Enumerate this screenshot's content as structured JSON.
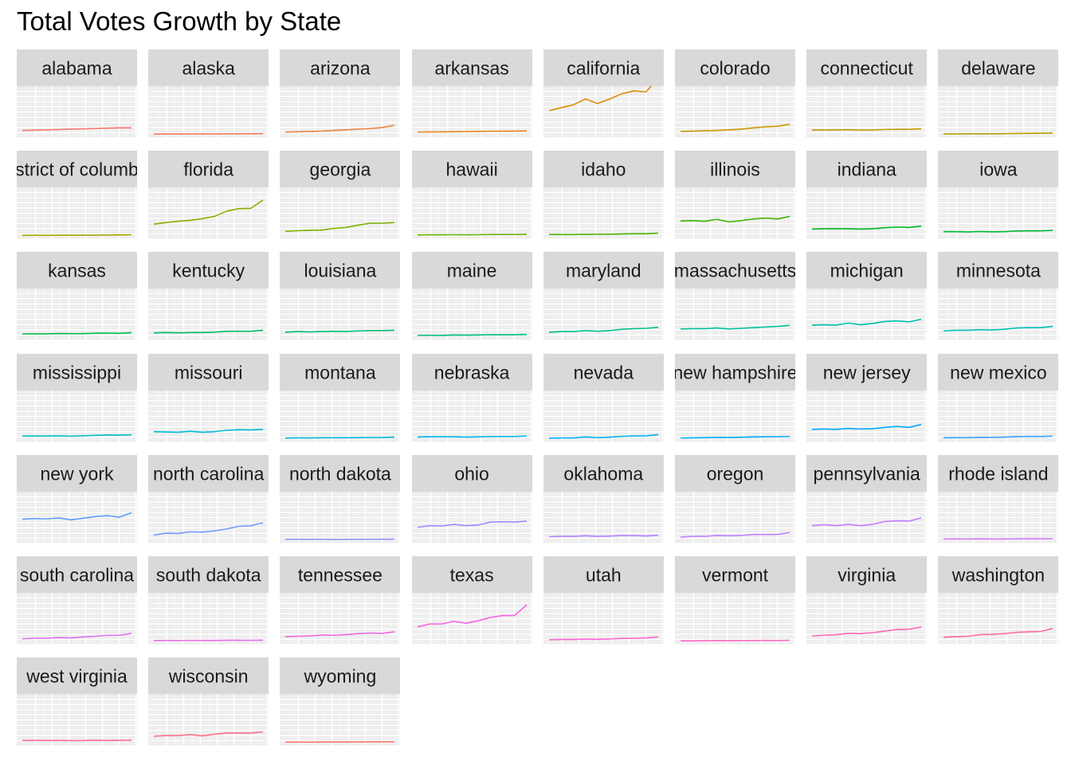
{
  "chart_data": {
    "type": "line",
    "title": "Total Votes Growth by State",
    "facet_columns": 8,
    "ylim": [
      0,
      14000000
    ],
    "grid": true,
    "legend": "none",
    "series": [
      {
        "name": "alabama",
        "color": "#F8766D",
        "values": [
          1300000,
          1400000,
          1500000,
          1600000,
          1700000,
          1800000,
          1900000,
          2000000,
          2100000,
          2100000
        ]
      },
      {
        "name": "alaska",
        "color": "#F37B59",
        "values": [
          190000,
          200000,
          210000,
          220000,
          230000,
          240000,
          250000,
          260000,
          300000,
          320000
        ]
      },
      {
        "name": "arizona",
        "color": "#ED8141",
        "values": [
          800000,
          900000,
          1000000,
          1100000,
          1300000,
          1500000,
          1700000,
          1900000,
          2200000,
          2900000
        ]
      },
      {
        "name": "arkansas",
        "color": "#E7861B",
        "values": [
          800000,
          850000,
          880000,
          900000,
          950000,
          1000000,
          1050000,
          1080000,
          1100000,
          1150000
        ]
      },
      {
        "name": "california",
        "color": "#DB8E00",
        "values": [
          7400000,
          8300000,
          9200000,
          11000000,
          9600000,
          11000000,
          12600000,
          13500000,
          13200000,
          17500000
        ]
      },
      {
        "name": "colorado",
        "color": "#CF9400",
        "values": [
          1000000,
          1100000,
          1200000,
          1300000,
          1500000,
          1700000,
          2100000,
          2400000,
          2600000,
          3200000
        ]
      },
      {
        "name": "connecticut",
        "color": "#C19A00",
        "values": [
          1400000,
          1450000,
          1450000,
          1550000,
          1400000,
          1450000,
          1600000,
          1650000,
          1650000,
          1800000
        ]
      },
      {
        "name": "delaware",
        "color": "#B2A000",
        "values": [
          230000,
          240000,
          250000,
          270000,
          270000,
          330000,
          380000,
          410000,
          440000,
          500000
        ]
      },
      {
        "name": "district of columbia",
        "color": "#A3A500",
        "values": [
          170000,
          190000,
          180000,
          190000,
          200000,
          200000,
          230000,
          270000,
          290000,
          340000
        ]
      },
      {
        "name": "florida",
        "color": "#93AA00",
        "values": [
          3600000,
          4100000,
          4500000,
          4800000,
          5300000,
          6000000,
          7600000,
          8400000,
          8500000,
          11000000
        ]
      },
      {
        "name": "georgia",
        "color": "#7FAE00",
        "values": [
          1400000,
          1600000,
          1700000,
          1800000,
          2300000,
          2600000,
          3300000,
          3900000,
          3900000,
          4100000
        ]
      },
      {
        "name": "hawaii",
        "color": "#69B100",
        "values": [
          300000,
          340000,
          360000,
          370000,
          360000,
          370000,
          430000,
          450000,
          430000,
          470000
        ]
      },
      {
        "name": "idaho",
        "color": "#4EB400",
        "values": [
          440000,
          420000,
          420000,
          480000,
          490000,
          500000,
          590000,
          650000,
          650000,
          850000
        ]
      },
      {
        "name": "illinois",
        "color": "#39B600",
        "values": [
          4600000,
          4700000,
          4500000,
          5100000,
          4300000,
          4700000,
          5200000,
          5500000,
          5200000,
          6000000
        ]
      },
      {
        "name": "indiana",
        "color": "#00B81D",
        "values": [
          2100000,
          2200000,
          2200000,
          2200000,
          2100000,
          2200000,
          2500000,
          2700000,
          2600000,
          3000000
        ]
      },
      {
        "name": "iowa",
        "color": "#00BA38",
        "values": [
          1300000,
          1300000,
          1200000,
          1350000,
          1250000,
          1300000,
          1500000,
          1550000,
          1550000,
          1700000
        ]
      },
      {
        "name": "kansas",
        "color": "#00BB4E",
        "values": [
          980000,
          1000000,
          990000,
          1100000,
          1070000,
          1070000,
          1180000,
          1230000,
          1160000,
          1370000
        ]
      },
      {
        "name": "kentucky",
        "color": "#00BC5D",
        "values": [
          1300000,
          1400000,
          1300000,
          1400000,
          1400000,
          1500000,
          1800000,
          1800000,
          1800000,
          2100000
        ]
      },
      {
        "name": "louisiana",
        "color": "#00BE70",
        "values": [
          1500000,
          1700000,
          1600000,
          1700000,
          1800000,
          1700000,
          1900000,
          2000000,
          2000000,
          2100000
        ]
      },
      {
        "name": "maine",
        "color": "#00BF80",
        "values": [
          520000,
          550000,
          500000,
          650000,
          600000,
          650000,
          740000,
          730000,
          710000,
          820000
        ]
      },
      {
        "name": "maryland",
        "color": "#00C08D",
        "values": [
          1500000,
          1700000,
          1700000,
          2000000,
          1800000,
          2000000,
          2400000,
          2600000,
          2700000,
          3000000
        ]
      },
      {
        "name": "massachusetts",
        "color": "#00C19A",
        "values": [
          2500000,
          2600000,
          2600000,
          2800000,
          2500000,
          2700000,
          2900000,
          3100000,
          3300000,
          3600000
        ]
      },
      {
        "name": "michigan",
        "color": "#00C0AB",
        "values": [
          3700000,
          3800000,
          3700000,
          4300000,
          3800000,
          4200000,
          4800000,
          5000000,
          4700000,
          5500000
        ]
      },
      {
        "name": "minnesota",
        "color": "#00C0B8",
        "values": [
          1900000,
          2100000,
          2100000,
          2300000,
          2200000,
          2400000,
          2800000,
          2900000,
          2900000,
          3300000
        ]
      },
      {
        "name": "mississippi",
        "color": "#00BEC4",
        "values": [
          940000,
          930000,
          930000,
          990000,
          890000,
          990000,
          1150000,
          1280000,
          1210000,
          1310000
        ]
      },
      {
        "name": "missouri",
        "color": "#00BCD1",
        "values": [
          2300000,
          2200000,
          2100000,
          2400000,
          2100000,
          2300000,
          2700000,
          2900000,
          2800000,
          3000000
        ]
      },
      {
        "name": "montana",
        "color": "#00B9DD",
        "values": [
          330000,
          380000,
          360000,
          410000,
          400000,
          410000,
          450000,
          490000,
          500000,
          600000
        ]
      },
      {
        "name": "nebraska",
        "color": "#00B6EB",
        "values": [
          640000,
          710000,
          710000,
          730000,
          600000,
          700000,
          770000,
          800000,
          800000,
          950000
        ]
      },
      {
        "name": "nevada",
        "color": "#00B2F3",
        "values": [
          290000,
          350000,
          350000,
          660000,
          460000,
          600000,
          830000,
          970000,
          1000000,
          1400000
        ]
      },
      {
        "name": "new hampshire",
        "color": "#00ADFA",
        "values": [
          340000,
          380000,
          450000,
          530000,
          500000,
          560000,
          670000,
          710000,
          740000,
          800000
        ]
      },
      {
        "name": "new jersey",
        "color": "#00A8FF",
        "values": [
          3000000,
          3100000,
          3000000,
          3300000,
          3100000,
          3200000,
          3600000,
          3900000,
          3600000,
          4500000
        ]
      },
      {
        "name": "new mexico",
        "color": "#35A2FF",
        "values": [
          420000,
          450000,
          460000,
          530000,
          550000,
          590000,
          750000,
          830000,
          780000,
          920000
        ]
      },
      {
        "name": "new york",
        "color": "#619CFF",
        "values": [
          6500000,
          6700000,
          6600000,
          6900000,
          6300000,
          6800000,
          7300000,
          7600000,
          7100000,
          8500000
        ]
      },
      {
        "name": "north carolina",
        "color": "#7B97FF",
        "values": [
          1600000,
          2200000,
          2100000,
          2600000,
          2500000,
          2900000,
          3500000,
          4300000,
          4500000,
          5400000
        ]
      },
      {
        "name": "north dakota",
        "color": "#8F91FF",
        "values": [
          300000,
          310000,
          300000,
          310000,
          270000,
          290000,
          310000,
          320000,
          320000,
          360000
        ]
      },
      {
        "name": "ohio",
        "color": "#A48AFF",
        "values": [
          4000000,
          4500000,
          4400000,
          4900000,
          4500000,
          4700000,
          5600000,
          5700000,
          5600000,
          5900000
        ]
      },
      {
        "name": "oklahoma",
        "color": "#B284FF",
        "values": [
          1100000,
          1250000,
          1200000,
          1400000,
          1200000,
          1300000,
          1450000,
          1450000,
          1330000,
          1560000
        ]
      },
      {
        "name": "oregon",
        "color": "#BE80FF",
        "values": [
          1000000,
          1200000,
          1200000,
          1500000,
          1400000,
          1500000,
          1800000,
          1800000,
          1800000,
          2400000
        ]
      },
      {
        "name": "pennsylvania",
        "color": "#C77CFF",
        "values": [
          4500000,
          4800000,
          4500000,
          4900000,
          4500000,
          4900000,
          5800000,
          6000000,
          5900000,
          6900000
        ]
      },
      {
        "name": "rhode island",
        "color": "#D176F8",
        "values": [
          400000,
          410000,
          400000,
          450000,
          390000,
          410000,
          440000,
          470000,
          450000,
          520000
        ]
      },
      {
        "name": "south carolina",
        "color": "#DB72F0",
        "values": [
          800000,
          1000000,
          1000000,
          1200000,
          1100000,
          1400000,
          1600000,
          1900000,
          1900000,
          2500000
        ]
      },
      {
        "name": "south dakota",
        "color": "#E56DE8",
        "values": [
          300000,
          330000,
          310000,
          340000,
          320000,
          320000,
          390000,
          380000,
          360000,
          420000
        ]
      },
      {
        "name": "tennessee",
        "color": "#ED68DF",
        "values": [
          1500000,
          1600000,
          1700000,
          2000000,
          1900000,
          2100000,
          2400000,
          2600000,
          2500000,
          3000000
        ]
      },
      {
        "name": "texas",
        "color": "#F564E3",
        "values": [
          4500000,
          5400000,
          5400000,
          6200000,
          5600000,
          6400000,
          7400000,
          8000000,
          8000000,
          11300000
        ]
      },
      {
        "name": "utah",
        "color": "#F966D3",
        "values": [
          540000,
          620000,
          630000,
          740000,
          670000,
          770000,
          930000,
          950000,
          1100000,
          1400000
        ]
      },
      {
        "name": "vermont",
        "color": "#FC67C4",
        "values": [
          190000,
          210000,
          240000,
          290000,
          260000,
          290000,
          310000,
          320000,
          310000,
          370000
        ]
      },
      {
        "name": "virginia",
        "color": "#FE68B6",
        "values": [
          1700000,
          1900000,
          2100000,
          2500000,
          2400000,
          2700000,
          3200000,
          3700000,
          3800000,
          4400000
        ]
      },
      {
        "name": "washington",
        "color": "#FF69A8",
        "values": [
          1300000,
          1500000,
          1600000,
          2100000,
          2200000,
          2400000,
          2800000,
          3000000,
          3100000,
          4000000
        ]
      },
      {
        "name": "west virginia",
        "color": "#FF6C9A",
        "values": [
          700000,
          740000,
          650000,
          680000,
          640000,
          650000,
          750000,
          700000,
          710000,
          790000
        ]
      },
      {
        "name": "wisconsin",
        "color": "#FC6F8B",
        "values": [
          2000000,
          2200000,
          2200000,
          2500000,
          2100000,
          2600000,
          3000000,
          3000000,
          3000000,
          3300000
        ]
      },
      {
        "name": "wyoming",
        "color": "#F8766D",
        "values": [
          180000,
          190000,
          180000,
          200000,
          210000,
          220000,
          240000,
          250000,
          250000,
          280000
        ]
      }
    ]
  }
}
